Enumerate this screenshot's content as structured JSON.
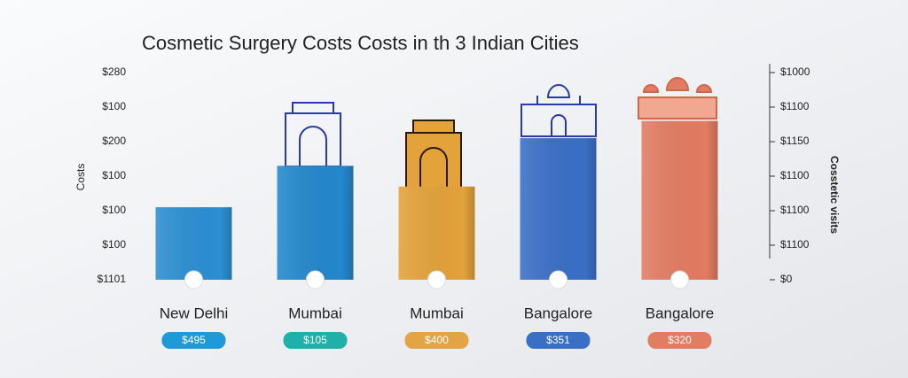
{
  "chart_data": {
    "type": "bar",
    "title": "Cosmetic Surgery Costs Costs in th 3 Indian Cities",
    "y_label": "Costs",
    "y2_label": "Cosstetic visits",
    "categories": [
      "New Delhi",
      "Mumbai",
      "Mumbai",
      "Bangalore",
      "Bangalore"
    ],
    "values": [
      2.1,
      3.3,
      2.7,
      4.1,
      4.6
    ],
    "colors": [
      "#2b8fd2",
      "#2388cc",
      "#e3a23a",
      "#3a6fc6",
      "#e27c62"
    ],
    "price_tags": [
      "$495",
      "$105",
      "$400",
      "$351",
      "$320"
    ],
    "price_tag_colors": [
      "#1f9ad9",
      "#1fb0aa",
      "#e3a445",
      "#3a6fc6",
      "#e27c62"
    ],
    "ylim": [
      0,
      6
    ],
    "yticks": [
      {
        "value": 0,
        "label": "$1101"
      },
      {
        "value": 1,
        "label": "$100"
      },
      {
        "value": 2,
        "label": "$100"
      },
      {
        "value": 3,
        "label": "$100"
      },
      {
        "value": 4,
        "label": "$200"
      },
      {
        "value": 5,
        "label": "$100"
      },
      {
        "value": 6,
        "label": "$280"
      }
    ],
    "y2lim": [
      0,
      6
    ],
    "y2ticks": [
      {
        "value": 0,
        "label": "$0"
      },
      {
        "value": 1,
        "label": "$1100"
      },
      {
        "value": 2,
        "label": "$1100"
      },
      {
        "value": 3,
        "label": "$1100"
      },
      {
        "value": 4,
        "label": "$1150"
      },
      {
        "value": 5,
        "label": "$1100"
      },
      {
        "value": 6,
        "label": "$1000"
      }
    ]
  }
}
